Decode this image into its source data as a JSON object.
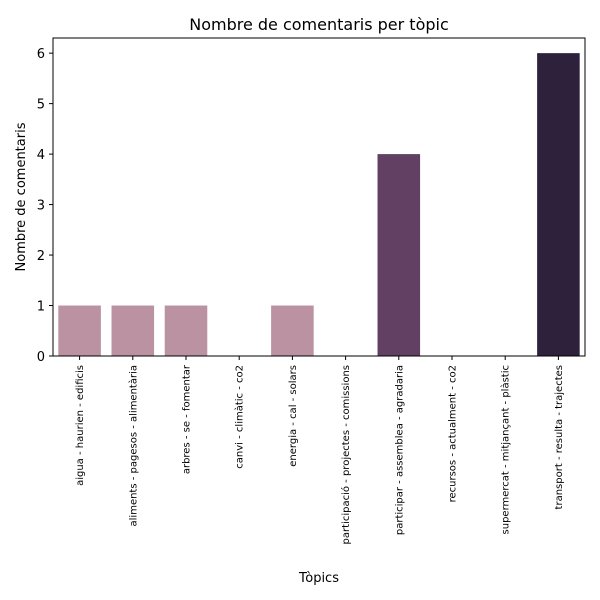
{
  "chart_data": {
    "type": "bar",
    "title": "Nombre de comentaris per tòpic",
    "xlabel": "Tòpics",
    "ylabel": "Nombre de comentaris",
    "ylim": [
      0,
      6.3
    ],
    "yticks": [
      0,
      1,
      2,
      3,
      4,
      5,
      6
    ],
    "categories": [
      "aigua - haurien - edificis",
      "aliments - pagesos - alimentària",
      "arbres - se - fomentar",
      "canvi - climàtic - co2",
      "energia - cal - solars",
      "participació - projectes - comissions",
      "participar - assemblea - agradaria",
      "recursos - actualment - co2",
      "supermercat - mitjançant - plàstic",
      "transport - resulta - trajectes"
    ],
    "values": [
      1,
      1,
      1,
      0,
      1,
      0,
      4,
      0,
      0,
      6
    ],
    "color_scale": {
      "low": "#d9b3b8",
      "mid": "#7b5077",
      "high": "#2d213c"
    },
    "grid": false,
    "legend": "none"
  }
}
